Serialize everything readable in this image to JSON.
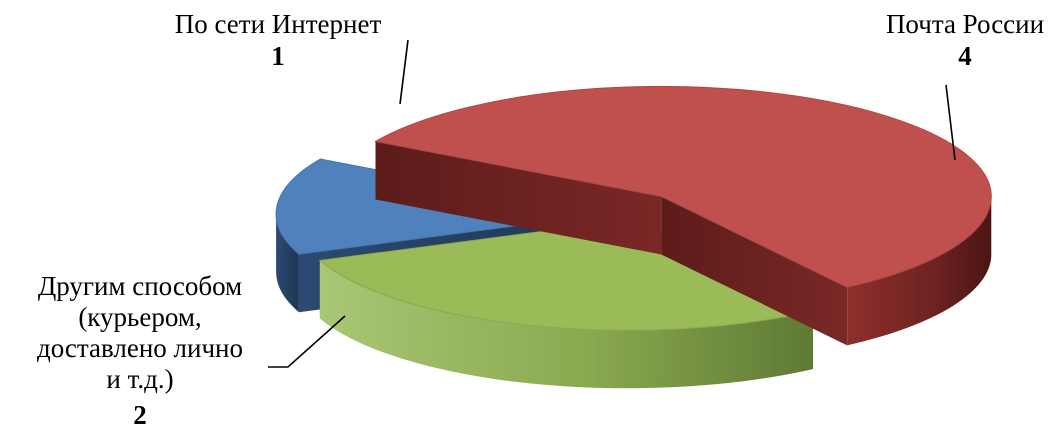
{
  "chart_data": {
    "type": "pie",
    "title": "",
    "style": "3d-exploded",
    "legend": "none",
    "slices": [
      {
        "label": "Почта России",
        "label_lines": [
          "Почта России"
        ],
        "value": 4,
        "color": "#c0504d"
      },
      {
        "label": "Другим способом (курьером, доставлено лично и т.д.)",
        "label_lines": [
          "Другим способом",
          "(курьером,",
          "доставлено лично",
          "и т.д.)"
        ],
        "value": 2,
        "color": "#9bbb59"
      },
      {
        "label": "По сети Интернет",
        "label_lines": [
          "По сети Интернет"
        ],
        "value": 1,
        "color": "#4f81bd"
      }
    ]
  }
}
